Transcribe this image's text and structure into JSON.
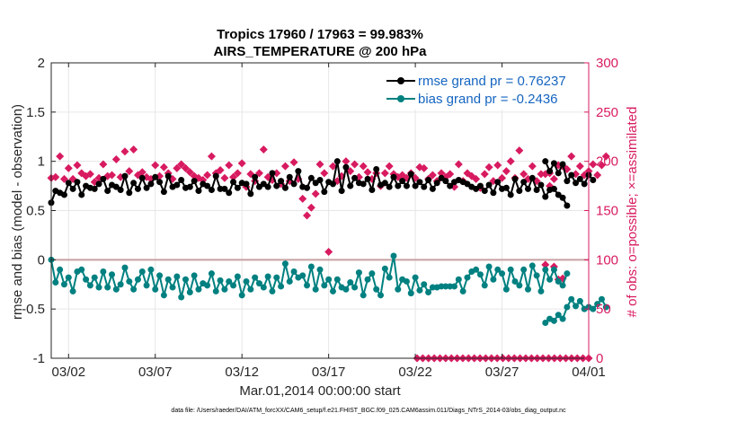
{
  "chart_data": {
    "type": "line",
    "title_line1": "Tropics 17960 / 17963 = 99.983%",
    "title_line2": "AIRS_TEMPERATURE @ 200 hPa",
    "xlabel": "Mar.01,2014 00:00:00 start",
    "ylabel_left": "rmse and bias (model - observation)",
    "ylabel_right": "# of obs: o=possible; ×=assimilated",
    "footnote": "data file: /Users/raeder/DAI/ATM_forcXX/CAM6_setup/f.e21.FHIST_BGC.f09_025.CAM6assim.011/Diags_NTrS_2014-03/obs_diag_output.nc",
    "xlim": [
      0,
      31
    ],
    "ylim_left": [
      -1,
      2
    ],
    "ylim_right": [
      0,
      300
    ],
    "xticks": [
      1,
      6,
      11,
      16,
      21,
      26,
      31
    ],
    "xtick_labels": [
      "03/02",
      "03/07",
      "03/12",
      "03/17",
      "03/22",
      "03/27",
      "04/01"
    ],
    "yticks_left": [
      -1,
      -0.5,
      0,
      0.5,
      1,
      1.5,
      2
    ],
    "ytick_labels_left": [
      "-1",
      "-0.5",
      "0",
      "0.5",
      "1",
      "1.5",
      "2"
    ],
    "yticks_right": [
      0,
      50,
      100,
      150,
      200,
      250,
      300
    ],
    "ytick_labels_right": [
      "0",
      "50",
      "100",
      "150",
      "200",
      "250",
      "300"
    ],
    "colors": {
      "rmse": "#000000",
      "bias": "#008080",
      "obs": "#d81b60",
      "zero_line": "#c8a0a0",
      "grid": "#e6e6e6"
    },
    "legend": [
      "rmse grand pr = 0.76237",
      "bias grand pr = -0.2436"
    ],
    "legend_position": "top-right",
    "series": [
      {
        "name": "rmse",
        "x_start": 0,
        "x_step": 0.25,
        "values": [
          0.58,
          0.7,
          0.68,
          0.66,
          0.78,
          0.72,
          0.79,
          0.66,
          0.75,
          0.73,
          0.72,
          0.77,
          0.82,
          0.7,
          0.76,
          0.74,
          0.71,
          0.85,
          0.68,
          0.78,
          0.72,
          0.83,
          0.73,
          0.77,
          0.84,
          0.79,
          0.69,
          0.85,
          0.74,
          0.76,
          0.81,
          0.73,
          0.74,
          0.8,
          0.7,
          0.77,
          0.75,
          0.71,
          0.85,
          0.72,
          0.72,
          0.68,
          0.79,
          0.73,
          0.78,
          0.77,
          0.67,
          0.84,
          0.74,
          0.77,
          0.74,
          0.88,
          0.75,
          0.8,
          0.73,
          0.84,
          0.77,
          0.9,
          0.74,
          0.73,
          0.83,
          0.78,
          0.81,
          0.69,
          0.79,
          0.77,
          1.0,
          0.7,
          0.94,
          0.75,
          0.83,
          0.78,
          0.77,
          0.82,
          0.71,
          0.92,
          0.76,
          0.78,
          0.74,
          0.84,
          0.75,
          0.8,
          0.75,
          0.87,
          0.75,
          0.79,
          0.74,
          0.81,
          0.72,
          0.78,
          0.83,
          0.8,
          0.75,
          0.79,
          0.81,
          0.79,
          0.77,
          0.74,
          0.72,
          0.75,
          0.7,
          0.76,
          0.68,
          0.79,
          0.72,
          0.73,
          0.66,
          0.82,
          0.7,
          0.79,
          0.72,
          0.83,
          0.71,
          0.76,
          0.64,
          0.71,
          0.72,
          0.66,
          0.63,
          0.55
        ]
      },
      {
        "name": "rmse",
        "x_start": 28.5,
        "x_step": 0.25,
        "values": [
          1.0,
          0.9,
          0.98,
          0.88,
          0.97,
          0.8,
          0.86,
          0.78,
          0.82,
          0.77,
          0.86,
          0.81
        ]
      },
      {
        "name": "bias",
        "x_start": 0,
        "x_step": 0.25,
        "values": [
          0.0,
          -0.23,
          -0.1,
          -0.25,
          -0.18,
          -0.32,
          -0.12,
          -0.1,
          -0.2,
          -0.26,
          -0.18,
          -0.28,
          -0.12,
          -0.28,
          -0.15,
          -0.3,
          -0.25,
          -0.08,
          -0.22,
          -0.3,
          -0.2,
          -0.12,
          -0.26,
          -0.1,
          -0.3,
          -0.16,
          -0.36,
          -0.2,
          -0.28,
          -0.17,
          -0.38,
          -0.2,
          -0.33,
          -0.16,
          -0.3,
          -0.24,
          -0.26,
          -0.14,
          -0.32,
          -0.21,
          -0.3,
          -0.22,
          -0.26,
          -0.17,
          -0.36,
          -0.22,
          -0.3,
          -0.18,
          -0.24,
          -0.28,
          -0.17,
          -0.32,
          -0.18,
          -0.27,
          -0.04,
          -0.22,
          -0.12,
          -0.18,
          -0.16,
          -0.26,
          -0.07,
          -0.3,
          -0.1,
          -0.26,
          -0.2,
          -0.32,
          -0.2,
          -0.28,
          -0.3,
          -0.23,
          -0.28,
          -0.13,
          -0.36,
          -0.2,
          -0.14,
          -0.3,
          -0.36,
          -0.09,
          -0.18,
          0.04,
          -0.3,
          -0.2,
          -0.22,
          -0.34,
          -0.18,
          -0.31,
          -0.25,
          -0.33,
          -0.28,
          -0.28,
          -0.27,
          -0.27,
          -0.27,
          -0.27,
          -0.2,
          -0.32,
          -0.18,
          -0.12,
          -0.1,
          -0.15,
          -0.26,
          -0.07,
          -0.2,
          -0.1,
          -0.14,
          -0.3,
          -0.1,
          -0.22,
          -0.26,
          -0.1,
          -0.3,
          -0.06,
          -0.16,
          -0.32,
          -0.1,
          -0.2,
          -0.1,
          -0.22,
          -0.26,
          -0.14
        ]
      },
      {
        "name": "bias",
        "x_start": 28.5,
        "x_step": 0.25,
        "values": [
          -0.64,
          -0.6,
          -0.62,
          -0.56,
          -0.6,
          -0.48,
          -0.4,
          -0.47,
          -0.42,
          -0.5,
          -0.48,
          -0.5,
          -0.45,
          -0.4,
          -0.48
        ]
      },
      {
        "name": "obs_possible",
        "x_start": 0,
        "x_step": 0.25,
        "values": [
          183,
          184,
          205,
          182,
          193,
          182,
          196,
          188,
          185,
          187,
          179,
          183,
          197,
          185,
          186,
          202,
          184,
          210,
          190,
          212,
          186,
          189,
          184,
          182,
          196,
          185,
          194,
          188,
          182,
          193,
          197,
          193,
          189,
          185,
          183,
          181,
          186,
          205,
          188,
          191,
          183,
          196,
          184,
          188,
          198,
          174,
          187,
          180,
          188,
          212,
          184,
          181,
          188,
          177,
          195,
          180,
          199,
          182,
          162,
          145,
          153,
          167,
          197,
          188,
          108,
          195,
          180,
          185,
          200,
          190,
          197,
          184,
          195,
          189,
          182,
          188,
          175,
          188,
          195,
          187,
          184,
          186,
          183,
          188,
          183,
          194,
          193,
          182,
          186,
          180,
          188,
          184,
          187,
          174,
          197,
          180,
          188,
          185,
          182,
          173,
          187,
          194,
          180,
          196,
          183,
          190,
          200,
          183,
          211,
          187,
          182,
          195,
          180,
          187,
          187,
          175,
          93,
          80,
          81
        ]
      },
      {
        "name": "obs_possible",
        "x_start": 28.5,
        "x_step": 0.25,
        "values": [
          95,
          188,
          182,
          196,
          195,
          192,
          205,
          187,
          195,
          186,
          190,
          197,
          186,
          196,
          205
        ]
      },
      {
        "name": "obs_zero",
        "x_start": 21.1,
        "x_step": 0.33,
        "values": [
          0,
          0,
          0,
          0,
          0,
          0,
          0,
          0,
          0,
          0,
          0,
          0,
          0,
          0,
          0,
          0,
          0,
          0,
          0,
          0,
          0,
          0,
          0,
          0,
          0,
          0,
          0,
          0,
          0,
          0,
          0
        ]
      }
    ]
  }
}
